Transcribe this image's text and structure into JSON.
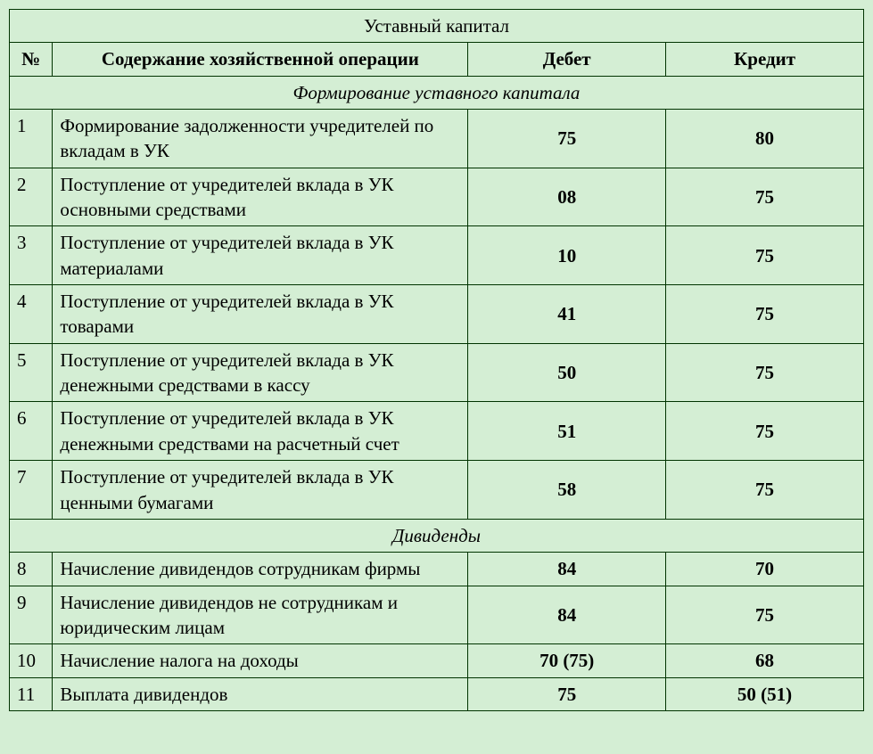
{
  "table": {
    "title": "Уставный капитал",
    "columns": {
      "num": "№",
      "desc": "Содержание хозяйственной операции",
      "debit": "Дебет",
      "credit": "Кредит"
    },
    "col_widths": {
      "num": 48,
      "desc": 462,
      "debit": 220,
      "credit": 220
    },
    "sections": [
      {
        "heading": "Формирование уставного капитала",
        "rows": [
          {
            "num": "1",
            "desc": "Формирование задолженности учредителей по вкладам в УК",
            "debit": "75",
            "credit": "80"
          },
          {
            "num": "2",
            "desc": "Поступление от учредителей вклада в УК основными средствами",
            "debit": "08",
            "credit": "75"
          },
          {
            "num": "3",
            "desc": "Поступление от учредителей вклада в УК материалами",
            "debit": "10",
            "credit": "75"
          },
          {
            "num": "4",
            "desc": "Поступление от учредителей вклада в УК товарами",
            "debit": "41",
            "credit": "75"
          },
          {
            "num": "5",
            "desc": "Поступление от учредителей вклада в УК денежными средствами в кассу",
            "debit": "50",
            "credit": "75"
          },
          {
            "num": "6",
            "desc": "Поступление от учредителей вклада в УК денежными средствами на расчетный счет",
            "debit": "51",
            "credit": "75"
          },
          {
            "num": "7",
            "desc": "Поступление от учредителей вклада в УК ценными бумагами",
            "debit": "58",
            "credit": "75"
          }
        ]
      },
      {
        "heading": "Дивиденды",
        "rows": [
          {
            "num": "8",
            "desc": "Начисление дивидендов сотрудникам фирмы",
            "debit": "84",
            "credit": "70"
          },
          {
            "num": "9",
            "desc": "Начисление дивидендов не сотрудникам и юридическим лицам",
            "debit": "84",
            "credit": "75"
          },
          {
            "num": "10",
            "desc": "Начисление налога на доходы",
            "debit": "70 (75)",
            "credit": "68"
          },
          {
            "num": "11",
            "desc": "Выплата дивидендов",
            "debit": "75",
            "credit": "50 (51)"
          }
        ]
      }
    ],
    "styling": {
      "background_color": "#d4eed4",
      "border_color": "#003300",
      "text_color": "#000000",
      "font_family": "Times New Roman",
      "base_fontsize": 21,
      "header_bold": true,
      "section_italic": true,
      "value_bold": true
    }
  }
}
